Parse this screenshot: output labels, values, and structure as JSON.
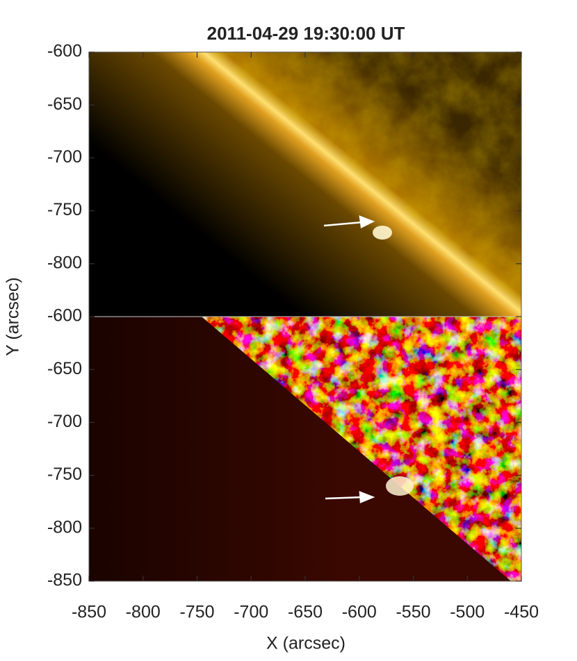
{
  "chart_data": {
    "type": "image",
    "title": "2011-04-29 19:30:00 UT",
    "xlabel": "X (arcsec)",
    "ylabel": "Y (arcsec)",
    "xlim": [
      -850,
      -450
    ],
    "xticks": [
      -850,
      -800,
      -750,
      -700,
      -650,
      -600,
      -550,
      -500,
      -450
    ],
    "panels": [
      {
        "ylim": [
          -850,
          -600
        ],
        "yticks": [
          -600,
          -650,
          -700,
          -750,
          -800
        ],
        "colormap": "gold"
      },
      {
        "ylim": [
          -850,
          -600
        ],
        "yticks": [
          -600,
          -650,
          -700,
          -750,
          -800,
          -850
        ],
        "colormap": "red"
      }
    ]
  }
}
